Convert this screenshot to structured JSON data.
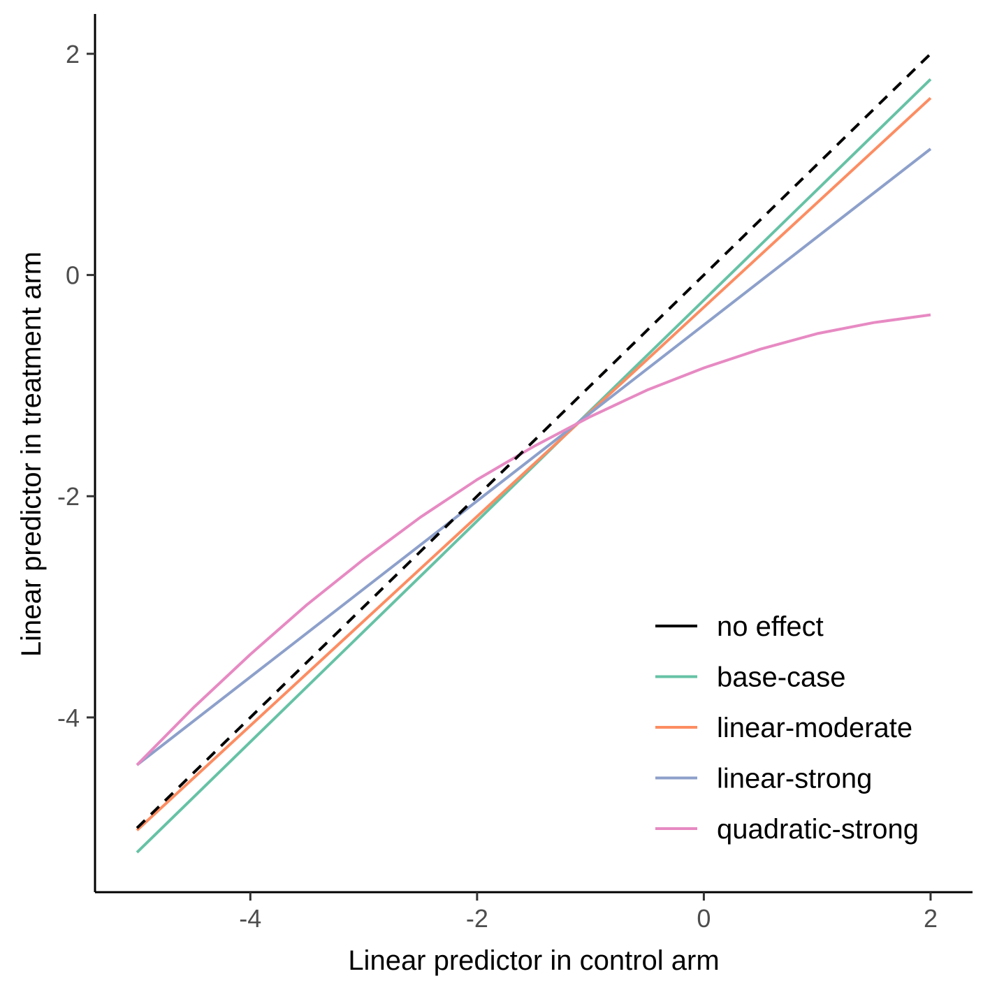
{
  "chart_data": {
    "type": "line",
    "title": "",
    "xlabel": "Linear predictor in control arm",
    "ylabel": "Linear predictor in treatment arm",
    "xlim": [
      -5.37,
      2.37
    ],
    "ylim": [
      -5.58,
      2.36
    ],
    "xticks": [
      -4,
      -2,
      0,
      2
    ],
    "yticks": [
      -4,
      -2,
      0,
      2
    ],
    "grid": false,
    "legend_position": "bottom-right",
    "series": [
      {
        "name": "no effect",
        "color": "#000000",
        "dash": true,
        "x": [
          -5,
          2
        ],
        "y": [
          -5,
          2
        ]
      },
      {
        "name": "base-case",
        "color": "#66c2a5",
        "dash": false,
        "x": [
          -5,
          2
        ],
        "y": [
          -5.22,
          1.77
        ]
      },
      {
        "name": "linear-moderate",
        "color": "#fc8d62",
        "dash": false,
        "x": [
          -5,
          2
        ],
        "y": [
          -5.02,
          1.6
        ]
      },
      {
        "name": "linear-strong",
        "color": "#8da0cb",
        "dash": false,
        "x": [
          -5,
          2
        ],
        "y": [
          -4.43,
          1.14
        ]
      },
      {
        "name": "quadratic-strong",
        "color": "#e78ac3",
        "dash": false,
        "x": [
          -5,
          -4.5,
          -4,
          -3.5,
          -3,
          -2.5,
          -2,
          -1.5,
          -1,
          -0.5,
          0,
          0.5,
          1,
          1.5,
          2
        ],
        "y": [
          -4.43,
          -3.91,
          -3.43,
          -2.98,
          -2.57,
          -2.19,
          -1.85,
          -1.55,
          -1.28,
          -1.04,
          -0.84,
          -0.67,
          -0.53,
          -0.43,
          -0.36
        ]
      }
    ]
  }
}
